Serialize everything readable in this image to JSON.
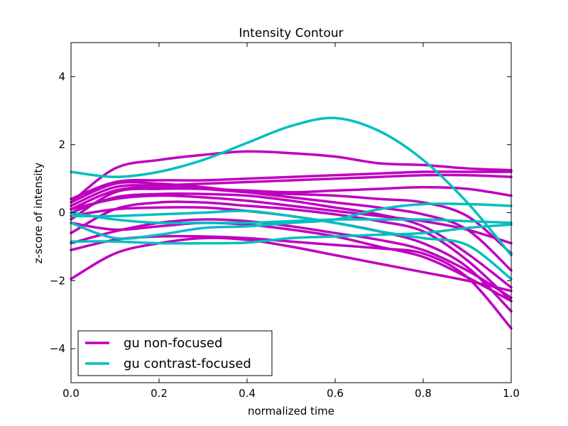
{
  "chart_data": {
    "type": "line",
    "title": "Intensity Contour",
    "xlabel": "normalized time",
    "ylabel": "z-score of intensity",
    "xlim": [
      0.0,
      1.0
    ],
    "ylim": [
      -5,
      5
    ],
    "xticks": [
      0.0,
      0.2,
      0.4,
      0.6,
      0.8,
      1.0
    ],
    "xtick_labels": [
      "0.0",
      "0.2",
      "0.4",
      "0.6",
      "0.8",
      "1.0"
    ],
    "yticks": [
      -4,
      -2,
      0,
      2,
      4
    ],
    "ytick_labels": [
      "−4",
      "−2",
      "0",
      "2",
      "4"
    ],
    "grid": false,
    "legend_position": "lower-left",
    "colors": {
      "gu non-focused": "#bf00bf",
      "gu contrast-focused": "#00bfbf"
    },
    "x": [
      0.0,
      0.1,
      0.2,
      0.3,
      0.4,
      0.5,
      0.6,
      0.7,
      0.8,
      0.9,
      1.0
    ],
    "legend": [
      {
        "label": "gu non-focused",
        "color": "#bf00bf"
      },
      {
        "label": "gu contrast-focused",
        "color": "#00bfbf"
      }
    ],
    "series": [
      {
        "group": "gu non-focused",
        "values": [
          0.3,
          1.3,
          1.55,
          1.7,
          1.8,
          1.75,
          1.65,
          1.45,
          1.4,
          1.3,
          1.25
        ]
      },
      {
        "group": "gu non-focused",
        "values": [
          0.4,
          0.9,
          0.95,
          0.95,
          1.0,
          1.05,
          1.1,
          1.15,
          1.2,
          1.2,
          1.2
        ]
      },
      {
        "group": "gu non-focused",
        "values": [
          0.2,
          0.75,
          0.8,
          0.85,
          0.9,
          0.95,
          1.0,
          1.05,
          1.1,
          1.1,
          1.05
        ]
      },
      {
        "group": "gu non-focused",
        "values": [
          -0.2,
          0.6,
          0.7,
          0.7,
          0.65,
          0.6,
          0.65,
          0.7,
          0.75,
          0.7,
          0.5
        ]
      },
      {
        "group": "gu non-focused",
        "values": [
          0.1,
          0.65,
          0.75,
          0.7,
          0.6,
          0.55,
          0.5,
          0.4,
          0.3,
          -0.1,
          -1.2
        ]
      },
      {
        "group": "gu non-focused",
        "values": [
          0.3,
          0.85,
          0.85,
          0.75,
          0.6,
          0.45,
          0.3,
          0.15,
          -0.05,
          -0.5,
          -1.7
        ]
      },
      {
        "group": "gu non-focused",
        "values": [
          0.0,
          0.45,
          0.55,
          0.55,
          0.5,
          0.35,
          0.15,
          -0.05,
          -0.4,
          -1.2,
          -2.2
        ]
      },
      {
        "group": "gu non-focused",
        "values": [
          -0.6,
          0.1,
          0.3,
          0.3,
          0.2,
          0.1,
          -0.05,
          -0.25,
          -0.55,
          -1.4,
          -2.6
        ]
      },
      {
        "group": "gu non-focused",
        "values": [
          -0.1,
          0.1,
          0.15,
          0.15,
          0.05,
          -0.1,
          -0.3,
          -0.55,
          -0.9,
          -1.6,
          -2.9
        ]
      },
      {
        "group": "gu non-focused",
        "values": [
          -0.9,
          -0.55,
          -0.3,
          -0.2,
          -0.25,
          -0.4,
          -0.6,
          -0.8,
          -1.1,
          -1.7,
          -2.5
        ]
      },
      {
        "group": "gu non-focused",
        "values": [
          -1.1,
          -0.8,
          -0.7,
          -0.7,
          -0.75,
          -0.85,
          -0.95,
          -1.05,
          -1.2,
          -1.9,
          -3.4
        ]
      },
      {
        "group": "gu non-focused",
        "values": [
          -1.95,
          -1.2,
          -0.9,
          -0.75,
          -0.8,
          -1.0,
          -1.25,
          -1.5,
          -1.75,
          -2.0,
          -2.3
        ]
      },
      {
        "group": "gu non-focused",
        "values": [
          -0.3,
          -0.5,
          -0.4,
          -0.3,
          -0.35,
          -0.5,
          -0.7,
          -1.0,
          -1.3,
          -1.9,
          -2.6
        ]
      },
      {
        "group": "gu non-focused",
        "values": [
          0.1,
          0.4,
          0.5,
          0.45,
          0.35,
          0.2,
          0.05,
          -0.1,
          -0.25,
          -0.5,
          -0.9
        ]
      },
      {
        "group": "gu contrast-focused",
        "values": [
          1.2,
          1.05,
          1.2,
          1.55,
          2.05,
          2.55,
          2.78,
          2.4,
          1.55,
          0.3,
          -1.25
        ]
      },
      {
        "group": "gu contrast-focused",
        "values": [
          -0.1,
          -0.1,
          -0.05,
          0.0,
          0.05,
          -0.1,
          -0.3,
          -0.55,
          -0.75,
          -0.95,
          -1.95
        ]
      },
      {
        "group": "gu contrast-focused",
        "values": [
          -0.3,
          -0.75,
          -0.65,
          -0.45,
          -0.4,
          -0.3,
          -0.2,
          0.1,
          0.25,
          0.25,
          0.2
        ]
      },
      {
        "group": "gu contrast-focused",
        "values": [
          -0.85,
          -0.85,
          -0.9,
          -0.9,
          -0.88,
          -0.75,
          -0.7,
          -0.65,
          -0.6,
          -0.45,
          -0.35
        ]
      },
      {
        "group": "gu contrast-focused",
        "values": [
          0.0,
          -0.2,
          -0.3,
          -0.3,
          -0.3,
          -0.25,
          -0.2,
          -0.2,
          -0.2,
          -0.25,
          -0.3
        ]
      }
    ]
  }
}
